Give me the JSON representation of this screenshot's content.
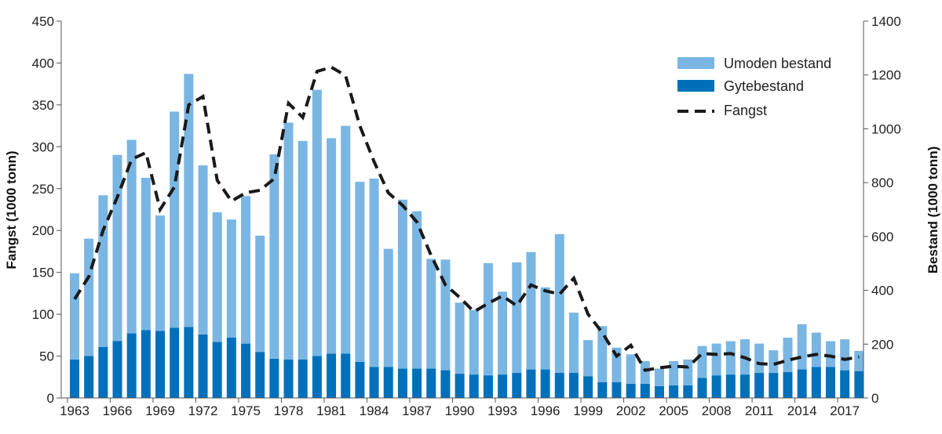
{
  "chart_data": {
    "type": "bar",
    "title": "",
    "ylabel_left": "Fangst (1000 tonn)",
    "ylabel_right": "Bestand (1000 tonn)",
    "ylim_left": [
      0,
      450
    ],
    "ylim_right": [
      0,
      1400
    ],
    "yticks_left": [
      0,
      50,
      100,
      150,
      200,
      250,
      300,
      350,
      400,
      450
    ],
    "yticks_right": [
      0,
      200,
      400,
      600,
      800,
      1000,
      1200,
      1400
    ],
    "xtick_labels": [
      "1963",
      "1966",
      "1969",
      "1972",
      "1975",
      "1978",
      "1981",
      "1984",
      "1987",
      "1990",
      "1993",
      "1996",
      "1999",
      "2002",
      "2005",
      "2008",
      "2011",
      "2014",
      "2017"
    ],
    "legend_position": "top-right",
    "colors": {
      "umoden": "#7ab6e3",
      "gyte": "#0070bb",
      "fangst": "#1a1a1a"
    },
    "years": [
      1963,
      1964,
      1965,
      1966,
      1967,
      1968,
      1969,
      1970,
      1971,
      1972,
      1973,
      1974,
      1975,
      1976,
      1977,
      1978,
      1979,
      1980,
      1981,
      1982,
      1983,
      1984,
      1985,
      1986,
      1987,
      1988,
      1989,
      1990,
      1991,
      1992,
      1993,
      1994,
      1995,
      1996,
      1997,
      1998,
      1999,
      2000,
      2001,
      2002,
      2003,
      2004,
      2005,
      2006,
      2007,
      2008,
      2009,
      2010,
      2011,
      2012,
      2013,
      2014,
      2015,
      2016,
      2017,
      2018
    ],
    "series": [
      {
        "name": "Umoden bestand",
        "type": "stacked-bar",
        "axis": "right",
        "values": [
          320,
          436,
          563,
          691,
          719,
          566,
          429,
          803,
          940,
          628,
          482,
          439,
          548,
          432,
          759,
          880,
          812,
          989,
          800,
          846,
          669,
          700,
          439,
          628,
          585,
          408,
          411,
          264,
          240,
          417,
          308,
          411,
          436,
          305,
          516,
          224,
          134,
          208,
          128,
          109,
          84,
          65,
          90,
          96,
          118,
          118,
          124,
          131,
          109,
          84,
          128,
          168,
          128,
          96,
          115,
          75
        ]
      },
      {
        "name": "Gytebestand",
        "type": "stacked-bar",
        "axis": "right",
        "values": [
          143,
          156,
          190,
          212,
          240,
          252,
          249,
          261,
          264,
          236,
          208,
          224,
          202,
          171,
          146,
          143,
          143,
          156,
          165,
          165,
          134,
          115,
          115,
          109,
          109,
          109,
          103,
          90,
          87,
          84,
          87,
          93,
          106,
          106,
          93,
          93,
          81,
          59,
          59,
          53,
          53,
          44,
          47,
          47,
          75,
          84,
          87,
          87,
          93,
          93,
          96,
          106,
          115,
          115,
          103,
          100
        ]
      },
      {
        "name": "Fangst",
        "type": "line",
        "axis": "left",
        "values": [
          118,
          145,
          200,
          240,
          285,
          293,
          225,
          252,
          350,
          360,
          260,
          235,
          245,
          248,
          262,
          352,
          335,
          390,
          395,
          385,
          325,
          282,
          245,
          230,
          210,
          170,
          135,
          120,
          103,
          113,
          122,
          110,
          135,
          128,
          124,
          143,
          100,
          78,
          50,
          63,
          33,
          36,
          38,
          37,
          53,
          52,
          53,
          48,
          41,
          40,
          45,
          49,
          52,
          50,
          46,
          49
        ]
      }
    ]
  }
}
